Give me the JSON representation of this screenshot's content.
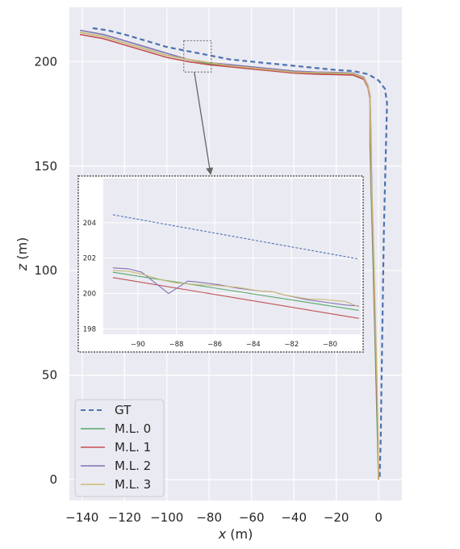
{
  "chart_data": {
    "type": "line",
    "xlabel": "x (m)",
    "ylabel": "z (m)",
    "xlim": [
      -146,
      11
    ],
    "ylim": [
      -10,
      226
    ],
    "xticks": [
      -140,
      -120,
      -100,
      -80,
      -60,
      -40,
      -20,
      0
    ],
    "xtick_labels": [
      "−140",
      "−120",
      "−100",
      "−80",
      "−60",
      "−40",
      "−20",
      "0"
    ],
    "yticks": [
      0,
      50,
      100,
      150,
      200
    ],
    "ytick_labels": [
      "0",
      "50",
      "100",
      "150",
      "200"
    ],
    "grid": true,
    "legend_position": "lower-left",
    "colors": {
      "background": "#eaeaf2",
      "grid": "#ffffff",
      "GT": "#4c72b0",
      "M.L. 0": "#55a868",
      "M.L. 1": "#c44e52",
      "M.L. 2": "#8172b3",
      "M.L. 3": "#ccb974"
    },
    "series": [
      {
        "name": "GT",
        "style": "dashed",
        "x": [
          -135,
          -128,
          -120,
          -110,
          -100,
          -90,
          -80,
          -70,
          -60,
          -50,
          -40,
          -30,
          -20,
          -12,
          -5,
          0,
          3,
          4,
          3.5,
          3,
          2.5,
          2.2,
          1.9,
          1.6,
          1.3,
          1.0,
          0.5
        ],
        "y": [
          216,
          215,
          213,
          210,
          207,
          205,
          203,
          201,
          200,
          199,
          198,
          197,
          196,
          195.5,
          194,
          191,
          187,
          180,
          160,
          140,
          120,
          100,
          80,
          60,
          40,
          20,
          0
        ]
      },
      {
        "name": "M.L. 0",
        "x": [
          -141,
          -130,
          -120,
          -110,
          -100,
          -90,
          -80,
          -70,
          -60,
          -50,
          -40,
          -30,
          -20,
          -12,
          -7,
          -5,
          -4,
          -4,
          -3.6,
          -3,
          -2.5,
          -2,
          -1.5,
          -1,
          -0.5,
          0
        ],
        "y": [
          214,
          212,
          209,
          206,
          203,
          201,
          199,
          198,
          197,
          196,
          195,
          194.5,
          194.3,
          194,
          192,
          188,
          183,
          160,
          140,
          120,
          100,
          80,
          60,
          40,
          20,
          0
        ]
      },
      {
        "name": "M.L. 1",
        "x": [
          -141,
          -130,
          -120,
          -110,
          -100,
          -90,
          -80,
          -70,
          -60,
          -50,
          -40,
          -30,
          -20,
          -12,
          -7,
          -5,
          -4,
          -3.8,
          -3.4,
          -2.8,
          -2.3,
          -1.8,
          -1.3,
          -0.8,
          -0.3,
          0
        ],
        "y": [
          213,
          211,
          208,
          205,
          202,
          200,
          198.5,
          197.5,
          196.5,
          195.5,
          194.5,
          194,
          193.8,
          193.5,
          191.5,
          187.5,
          182,
          160,
          140,
          120,
          100,
          80,
          60,
          40,
          20,
          0
        ]
      },
      {
        "name": "M.L. 2",
        "x": [
          -141,
          -130,
          -120,
          -110,
          -100,
          -90,
          -80,
          -70,
          -60,
          -50,
          -40,
          -30,
          -20,
          -12,
          -7,
          -5,
          -4,
          -3.5,
          -3.2,
          -2.7,
          -2.2,
          -1.7,
          -1.2,
          -0.7,
          -0.3,
          0
        ],
        "y": [
          215,
          213,
          210,
          207,
          204,
          201,
          199.5,
          198.5,
          197.5,
          196.5,
          195.5,
          195,
          194.8,
          194.5,
          192.5,
          188.5,
          183.5,
          160,
          140,
          120,
          100,
          80,
          60,
          40,
          20,
          0
        ]
      },
      {
        "name": "M.L. 3",
        "x": [
          -141,
          -130,
          -120,
          -110,
          -100,
          -90,
          -80,
          -70,
          -60,
          -50,
          -40,
          -30,
          -20,
          -12,
          -7,
          -5,
          -4,
          -3.6,
          -3.3,
          -2.6,
          -2.1,
          -1.6,
          -1.1,
          -0.6,
          -0.2,
          0
        ],
        "y": [
          214,
          212,
          209,
          206,
          203,
          201,
          199.5,
          198,
          197,
          196,
          195,
          194.7,
          194.5,
          194.2,
          192.2,
          188.2,
          183.2,
          160,
          140,
          120,
          100,
          80,
          60,
          40,
          20,
          0
        ]
      }
    ],
    "inset": {
      "xlim": [
        -91.8,
        -78.4
      ],
      "ylim": [
        197.7,
        206.5
      ],
      "xticks": [
        -90,
        -88,
        -86,
        -84,
        -82,
        -80
      ],
      "xtick_labels": [
        "−90",
        "−88",
        "−86",
        "−84",
        "−82",
        "−80"
      ],
      "yticks": [
        198,
        200,
        202,
        204
      ],
      "ytick_labels": [
        "198",
        "200",
        "202",
        "204"
      ],
      "source_box": {
        "x": [
          -92,
          -79
        ],
        "y": [
          195,
          210
        ]
      },
      "series": [
        {
          "name": "GT",
          "style": "dashed",
          "x": [
            -91.3,
            -78.5
          ],
          "y": [
            204.45,
            201.95
          ]
        },
        {
          "name": "M.L. 0",
          "x": [
            -91.3,
            -78.5
          ],
          "y": [
            201.2,
            199.05
          ]
        },
        {
          "name": "M.L. 1",
          "x": [
            -91.3,
            -78.5
          ],
          "y": [
            200.9,
            198.6
          ]
        },
        {
          "name": "M.L. 2",
          "x": [
            -91.3,
            -90.5,
            -89.8,
            -88.4,
            -87.4,
            -86.9,
            -85.8,
            -84.8,
            -83.7,
            -83.0,
            -82.3,
            -81.2,
            -80.2,
            -79.2,
            -78.5
          ],
          "y": [
            201.45,
            201.4,
            201.2,
            200.0,
            200.7,
            200.65,
            200.5,
            200.3,
            200.15,
            200.1,
            199.9,
            199.65,
            199.5,
            199.35,
            199.3
          ]
        },
        {
          "name": "M.L. 3",
          "x": [
            -91.3,
            -90.5,
            -89.8,
            -88.7,
            -88.0,
            -87.4,
            -86.9,
            -85.8,
            -84.8,
            -83.7,
            -83.0,
            -82.3,
            -81.2,
            -80.2,
            -79.2,
            -78.5
          ],
          "y": [
            201.3,
            201.25,
            201.1,
            200.75,
            200.6,
            200.55,
            200.5,
            200.45,
            200.35,
            200.15,
            200.1,
            199.9,
            199.7,
            199.65,
            199.55,
            199.25
          ]
        }
      ]
    }
  }
}
